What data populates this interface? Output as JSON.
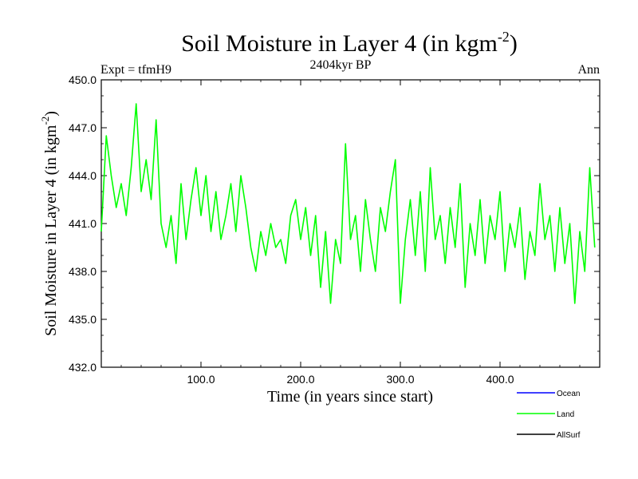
{
  "chart_data": {
    "type": "line",
    "title": "Soil Moisture in Layer 4 (in kgm",
    "title_sup": "-2",
    "title_close": ")",
    "subtitle_left": "Expt = tfmH9",
    "subtitle_center": "2404kyr BP",
    "subtitle_right": "Ann",
    "xlabel": "Time (in years since start)",
    "ylabel": "Soil Moisture in Layer 4 (in kgm",
    "ylabel_sup": "-2",
    "ylabel_close": ")",
    "xlim": [
      0,
      500
    ],
    "ylim": [
      432.0,
      450.0
    ],
    "xticks": [
      100,
      200,
      300,
      400
    ],
    "xtick_labels": [
      "100.0",
      "200.0",
      "300.0",
      "400.0"
    ],
    "yticks": [
      432,
      435,
      438,
      441,
      444,
      447,
      450
    ],
    "ytick_labels": [
      "432.0",
      "435.0",
      "438.0",
      "441.0",
      "444.0",
      "447.0",
      "450.0"
    ],
    "series": [
      {
        "name": "Ocean",
        "color": "#0000ff",
        "x": [],
        "values": []
      },
      {
        "name": "Land",
        "color": "#00ff00",
        "x": [
          0,
          5,
          10,
          15,
          20,
          25,
          30,
          35,
          40,
          45,
          50,
          55,
          60,
          65,
          70,
          75,
          80,
          85,
          90,
          95,
          100,
          105,
          110,
          115,
          120,
          125,
          130,
          135,
          140,
          145,
          150,
          155,
          160,
          165,
          170,
          175,
          180,
          185,
          190,
          195,
          200,
          205,
          210,
          215,
          220,
          225,
          230,
          235,
          240,
          245,
          250,
          255,
          260,
          265,
          270,
          275,
          280,
          285,
          290,
          295,
          300,
          305,
          310,
          315,
          320,
          325,
          330,
          335,
          340,
          345,
          350,
          355,
          360,
          365,
          370,
          375,
          380,
          385,
          390,
          395,
          400,
          405,
          410,
          415,
          420,
          425,
          430,
          435,
          440,
          445,
          450,
          455,
          460,
          465,
          470,
          475,
          480,
          485,
          490,
          495
        ],
        "values": [
          440.5,
          446.5,
          444.0,
          442.0,
          443.5,
          441.5,
          444.5,
          448.5,
          443.0,
          445.0,
          442.5,
          447.5,
          441.0,
          439.5,
          441.5,
          438.5,
          443.5,
          440.0,
          442.5,
          444.5,
          441.5,
          444.0,
          440.5,
          443.0,
          440.0,
          441.5,
          443.5,
          440.5,
          444.0,
          442.0,
          439.5,
          438.0,
          440.5,
          439.0,
          441.0,
          439.5,
          440.0,
          438.5,
          441.5,
          442.5,
          440.0,
          442.0,
          439.0,
          441.5,
          437.0,
          440.5,
          436.0,
          440.0,
          438.5,
          446.0,
          440.0,
          441.5,
          438.0,
          442.5,
          440.0,
          438.0,
          442.0,
          440.5,
          443.0,
          445.0,
          436.0,
          440.0,
          442.5,
          439.0,
          443.0,
          438.0,
          444.5,
          440.0,
          441.5,
          438.5,
          442.0,
          439.5,
          443.5,
          437.0,
          441.0,
          439.0,
          442.5,
          438.5,
          441.5,
          440.0,
          443.0,
          438.0,
          441.0,
          439.5,
          442.0,
          437.5,
          440.5,
          439.0,
          443.5,
          440.0,
          441.5,
          438.0,
          442.0,
          438.5,
          441.0,
          436.0,
          440.5,
          438.0,
          444.5,
          439.5
        ]
      },
      {
        "name": "AllSurf",
        "color": "#000000",
        "x": [],
        "values": []
      }
    ],
    "legend_position": "bottom-right"
  }
}
